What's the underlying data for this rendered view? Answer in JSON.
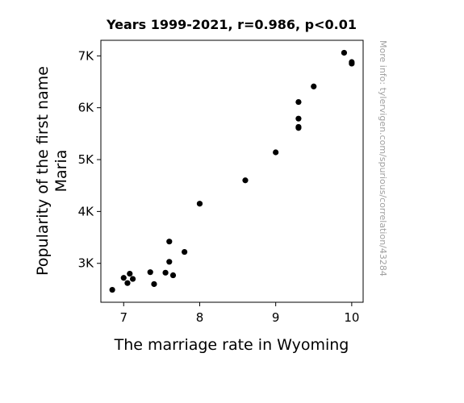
{
  "chart_data": {
    "type": "scatter",
    "title": "Years 1999-2021, r=0.986, p<0.01",
    "xlabel": "The marriage rate in Wyoming",
    "ylabel_lines": [
      "Popularity of the first name",
      "Maria"
    ],
    "xlim": [
      6.7,
      10.15
    ],
    "ylim": [
      2250,
      7300
    ],
    "xticks": [
      7,
      8,
      9,
      10
    ],
    "xtick_labels": [
      "7",
      "8",
      "9",
      "10"
    ],
    "yticks": [
      3000,
      4000,
      5000,
      6000,
      7000
    ],
    "ytick_labels": [
      "3K",
      "4K",
      "5K",
      "6K",
      "7K"
    ],
    "grid": false,
    "marker_color": "#000000",
    "points": [
      {
        "x": 6.85,
        "y": 2490
      },
      {
        "x": 7.0,
        "y": 2720
      },
      {
        "x": 7.05,
        "y": 2620
      },
      {
        "x": 7.08,
        "y": 2800
      },
      {
        "x": 7.12,
        "y": 2700
      },
      {
        "x": 7.35,
        "y": 2830
      },
      {
        "x": 7.4,
        "y": 2600
      },
      {
        "x": 7.55,
        "y": 2820
      },
      {
        "x": 7.6,
        "y": 3030
      },
      {
        "x": 7.6,
        "y": 3420
      },
      {
        "x": 7.65,
        "y": 2770
      },
      {
        "x": 7.8,
        "y": 3220
      },
      {
        "x": 8.0,
        "y": 4150
      },
      {
        "x": 8.6,
        "y": 4600
      },
      {
        "x": 9.0,
        "y": 5140
      },
      {
        "x": 9.3,
        "y": 5610
      },
      {
        "x": 9.3,
        "y": 5630
      },
      {
        "x": 9.3,
        "y": 5790
      },
      {
        "x": 9.3,
        "y": 6110
      },
      {
        "x": 9.5,
        "y": 6410
      },
      {
        "x": 9.9,
        "y": 7060
      },
      {
        "x": 10.0,
        "y": 6850
      },
      {
        "x": 10.0,
        "y": 6880
      }
    ]
  },
  "watermark": "More info: tylervigen.com/spurious/correlation/43284"
}
